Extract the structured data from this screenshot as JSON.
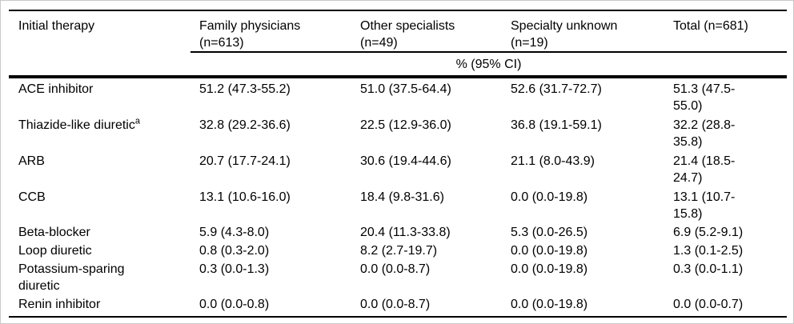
{
  "colors": {
    "background": "#ffffff",
    "text": "#000000",
    "rule": "#000000",
    "frame": "#c9c9c9"
  },
  "table": {
    "span_header": "% (95% CI)",
    "columns": [
      {
        "label": "Initial therapy"
      },
      {
        "label": "Family physicians (n=613)"
      },
      {
        "label": "Other specialists (n=49)"
      },
      {
        "label": "Specialty unknown (n=19)"
      },
      {
        "label": "Total (n=681)"
      }
    ],
    "rows": [
      {
        "therapy": "ACE inhibitor",
        "footnote_marker": "",
        "values": [
          "51.2 (47.3-55.2)",
          "51.0 (37.5-64.4)",
          "52.6 (31.7-72.7)",
          "51.3 (47.5-55.0)"
        ]
      },
      {
        "therapy": "Thiazide-like diuretic",
        "footnote_marker": "a",
        "values": [
          "32.8 (29.2-36.6)",
          "22.5 (12.9-36.0)",
          "36.8 (19.1-59.1)",
          "32.2 (28.8-35.8)"
        ]
      },
      {
        "therapy": "ARB",
        "footnote_marker": "",
        "values": [
          "20.7 (17.7-24.1)",
          "30.6 (19.4-44.6)",
          "21.1 (8.0-43.9)",
          "21.4 (18.5-24.7)"
        ]
      },
      {
        "therapy": "CCB",
        "footnote_marker": "",
        "values": [
          "13.1 (10.6-16.0)",
          "18.4 (9.8-31.6)",
          "0.0 (0.0-19.8)",
          "13.1 (10.7-15.8)"
        ]
      },
      {
        "therapy": "Beta-blocker",
        "footnote_marker": "",
        "values": [
          "5.9 (4.3-8.0)",
          "20.4 (11.3-33.8)",
          "5.3 (0.0-26.5)",
          "6.9 (5.2-9.1)"
        ]
      },
      {
        "therapy": "Loop diuretic",
        "footnote_marker": "",
        "values": [
          "0.8 (0.3-2.0)",
          "8.2 (2.7-19.7)",
          "0.0 (0.0-19.8)",
          "1.3 (0.1-2.5)"
        ]
      },
      {
        "therapy": "Potassium-sparing diuretic",
        "footnote_marker": "",
        "values": [
          "0.3 (0.0-1.3)",
          "0.0 (0.0-8.7)",
          "0.0 (0.0-19.8)",
          "0.3 (0.0-1.1)"
        ]
      },
      {
        "therapy": "Renin inhibitor",
        "footnote_marker": "",
        "values": [
          "0.0 (0.0-0.8)",
          "0.0 (0.0-8.7)",
          "0.0 (0.0-19.8)",
          "0.0 (0.0-0.7)"
        ]
      }
    ]
  }
}
